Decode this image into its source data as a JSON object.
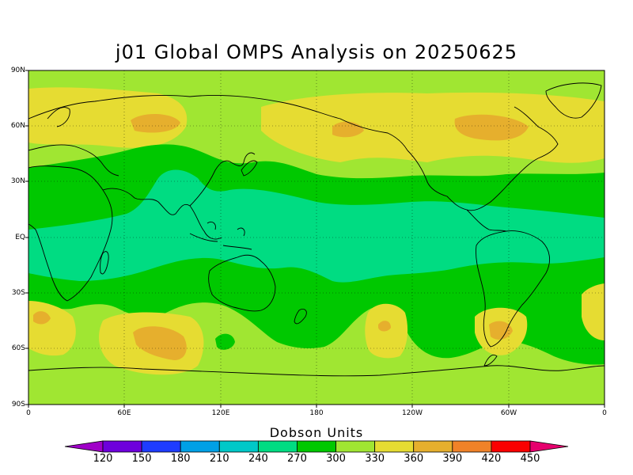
{
  "title": "j01 Global OMPS Analysis on 20250625",
  "map": {
    "lat_labels": [
      "90N",
      "60N",
      "30N",
      "EQ",
      "30S",
      "60S",
      "90S"
    ],
    "lon_labels": [
      "0",
      "60E",
      "120E",
      "180",
      "120W",
      "60W",
      "0"
    ]
  },
  "colorbar": {
    "title": "Dobson Units",
    "levels": [
      "120",
      "150",
      "180",
      "210",
      "240",
      "270",
      "300",
      "330",
      "360",
      "390",
      "420",
      "450"
    ],
    "colors": [
      "#a000c8",
      "#6e00dc",
      "#1e3cff",
      "#00a0e6",
      "#00c8c8",
      "#00dc82",
      "#00c800",
      "#a0e632",
      "#e6dc32",
      "#e6af2d",
      "#f08228",
      "#fa0000",
      "#e6006e"
    ]
  },
  "field_colors": {
    "ocean_low": "#a0e632",
    "band_300": "#00c800",
    "tropics_270": "#00dc82",
    "high_330": "#e6dc32",
    "peak_360": "#e6af2d"
  }
}
